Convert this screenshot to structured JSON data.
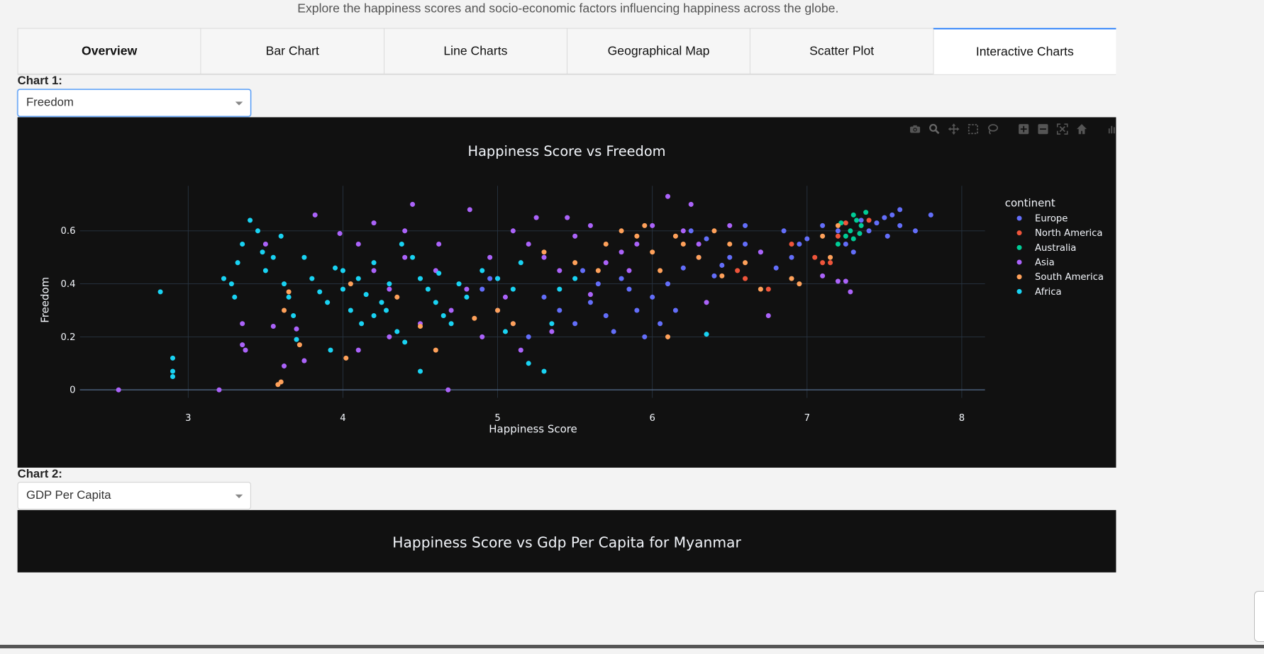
{
  "subtitle": "Explore the happiness scores and socio-economic factors influencing happiness across the globe.",
  "tabs": [
    {
      "label": "Overview"
    },
    {
      "label": "Bar Chart"
    },
    {
      "label": "Line Charts"
    },
    {
      "label": "Geographical Map"
    },
    {
      "label": "Scatter Plot"
    },
    {
      "label": "Interactive Charts"
    }
  ],
  "active_tab": "Interactive Charts",
  "chart1_control": {
    "label": "Chart 1:",
    "selected": "Freedom"
  },
  "chart2_control": {
    "label": "Chart 2:",
    "selected": "GDP Per Capita"
  },
  "modebar_icons": [
    "camera-icon",
    "zoom-icon",
    "pan-icon",
    "box-select-icon",
    "lasso-icon",
    "zoom-in-icon",
    "zoom-out-icon",
    "autoscale-icon",
    "reset-axes-icon",
    "plotly-logo-icon"
  ],
  "colors": {
    "plot_bg": "#111111",
    "Europe": "#636efa",
    "North America": "#EF553B",
    "Australia": "#00cc96",
    "Asia": "#ab63fa",
    "South America": "#FFA15A",
    "Africa": "#19d3f3"
  },
  "chart_data": [
    {
      "type": "scatter",
      "title": "Happiness Score vs Freedom",
      "xlabel": "Happiness Score",
      "ylabel": "Freedom",
      "xlim": [
        2.3,
        8.15
      ],
      "ylim": [
        -0.03,
        0.77
      ],
      "xticks": [
        3,
        4,
        5,
        6,
        7,
        8
      ],
      "yticks": [
        0,
        0.2,
        0.4,
        0.6
      ],
      "ytick_labels": [
        "0",
        "0.2",
        "0.4",
        "0.6"
      ],
      "grid": true,
      "legend": {
        "title": "continent",
        "placement": "right"
      },
      "series": [
        {
          "name": "Europe",
          "points": [
            [
              7.6,
              0.68
            ],
            [
              7.55,
              0.66
            ],
            [
              7.5,
              0.65
            ],
            [
              7.45,
              0.63
            ],
            [
              7.6,
              0.62
            ],
            [
              7.4,
              0.6
            ],
            [
              7.52,
              0.58
            ],
            [
              7.35,
              0.64
            ],
            [
              7.8,
              0.66
            ],
            [
              7.7,
              0.6
            ],
            [
              7.2,
              0.6
            ],
            [
              7.1,
              0.62
            ],
            [
              7.0,
              0.57
            ],
            [
              6.95,
              0.55
            ],
            [
              6.9,
              0.5
            ],
            [
              6.8,
              0.46
            ],
            [
              6.7,
              0.52
            ],
            [
              6.6,
              0.55
            ],
            [
              6.5,
              0.5
            ],
            [
              6.45,
              0.47
            ],
            [
              6.4,
              0.43
            ],
            [
              6.35,
              0.57
            ],
            [
              6.3,
              0.5
            ],
            [
              6.2,
              0.46
            ],
            [
              6.1,
              0.4
            ],
            [
              6.0,
              0.35
            ],
            [
              5.9,
              0.3
            ],
            [
              5.85,
              0.38
            ],
            [
              5.8,
              0.42
            ],
            [
              5.7,
              0.28
            ],
            [
              5.6,
              0.33
            ],
            [
              5.5,
              0.25
            ],
            [
              5.4,
              0.3
            ],
            [
              5.3,
              0.35
            ],
            [
              5.2,
              0.2
            ],
            [
              5.1,
              0.25
            ],
            [
              5.0,
              0.3
            ],
            [
              4.9,
              0.38
            ],
            [
              5.95,
              0.2
            ],
            [
              6.05,
              0.25
            ],
            [
              6.15,
              0.3
            ],
            [
              5.75,
              0.22
            ],
            [
              6.25,
              0.6
            ],
            [
              6.6,
              0.62
            ],
            [
              6.85,
              0.6
            ],
            [
              7.25,
              0.55
            ],
            [
              7.3,
              0.52
            ],
            [
              5.55,
              0.45
            ],
            [
              5.65,
              0.4
            ],
            [
              4.95,
              0.42
            ]
          ]
        },
        {
          "name": "North America",
          "points": [
            [
              7.4,
              0.64
            ],
            [
              7.2,
              0.58
            ],
            [
              7.1,
              0.48
            ],
            [
              7.05,
              0.5
            ],
            [
              6.9,
              0.55
            ],
            [
              6.75,
              0.38
            ],
            [
              6.6,
              0.42
            ],
            [
              6.55,
              0.45
            ],
            [
              7.25,
              0.63
            ],
            [
              7.15,
              0.48
            ]
          ]
        },
        {
          "name": "Australia",
          "points": [
            [
              7.3,
              0.66
            ],
            [
              7.32,
              0.64
            ],
            [
              7.28,
              0.6
            ],
            [
              7.25,
              0.58
            ],
            [
              7.35,
              0.62
            ],
            [
              7.3,
              0.57
            ],
            [
              7.38,
              0.67
            ],
            [
              7.22,
              0.63
            ],
            [
              7.34,
              0.59
            ],
            [
              7.2,
              0.55
            ]
          ]
        },
        {
          "name": "Asia",
          "points": [
            [
              2.55,
              0.0
            ],
            [
              3.2,
              0.0
            ],
            [
              4.68,
              0.0
            ],
            [
              3.35,
              0.17
            ],
            [
              3.37,
              0.15
            ],
            [
              3.35,
              0.25
            ],
            [
              3.55,
              0.24
            ],
            [
              3.62,
              0.09
            ],
            [
              3.82,
              0.66
            ],
            [
              3.98,
              0.59
            ],
            [
              4.2,
              0.63
            ],
            [
              4.4,
              0.6
            ],
            [
              4.45,
              0.7
            ],
            [
              4.62,
              0.55
            ],
            [
              4.82,
              0.68
            ],
            [
              4.95,
              0.5
            ],
            [
              5.0,
              0.42
            ],
            [
              5.05,
              0.35
            ],
            [
              5.1,
              0.6
            ],
            [
              5.2,
              0.55
            ],
            [
              5.25,
              0.65
            ],
            [
              5.3,
              0.5
            ],
            [
              5.4,
              0.45
            ],
            [
              5.45,
              0.65
            ],
            [
              5.5,
              0.58
            ],
            [
              5.6,
              0.62
            ],
            [
              5.7,
              0.48
            ],
            [
              5.8,
              0.52
            ],
            [
              5.9,
              0.55
            ],
            [
              6.0,
              0.62
            ],
            [
              6.1,
              0.73
            ],
            [
              6.2,
              0.6
            ],
            [
              6.25,
              0.7
            ],
            [
              6.3,
              0.55
            ],
            [
              6.35,
              0.33
            ],
            [
              6.5,
              0.62
            ],
            [
              6.7,
              0.52
            ],
            [
              6.75,
              0.28
            ],
            [
              7.1,
              0.43
            ],
            [
              7.2,
              0.41
            ],
            [
              7.28,
              0.37
            ],
            [
              7.25,
              0.41
            ],
            [
              4.1,
              0.15
            ],
            [
              4.3,
              0.2
            ],
            [
              4.5,
              0.25
            ],
            [
              4.7,
              0.3
            ],
            [
              4.9,
              0.2
            ],
            [
              5.15,
              0.15
            ],
            [
              5.35,
              0.22
            ],
            [
              4.2,
              0.45
            ],
            [
              4.4,
              0.5
            ],
            [
              4.6,
              0.45
            ],
            [
              4.8,
              0.38
            ],
            [
              3.7,
              0.23
            ],
            [
              3.75,
              0.11
            ],
            [
              4.1,
              0.55
            ],
            [
              4.3,
              0.38
            ],
            [
              3.5,
              0.55
            ],
            [
              5.6,
              0.36
            ],
            [
              5.85,
              0.45
            ]
          ]
        },
        {
          "name": "South America",
          "points": [
            [
              3.58,
              0.02
            ],
            [
              3.6,
              0.03
            ],
            [
              3.62,
              0.3
            ],
            [
              3.65,
              0.37
            ],
            [
              3.72,
              0.17
            ],
            [
              4.02,
              0.12
            ],
            [
              4.05,
              0.4
            ],
            [
              4.5,
              0.24
            ],
            [
              4.6,
              0.15
            ],
            [
              4.85,
              0.27
            ],
            [
              5.0,
              0.3
            ],
            [
              5.1,
              0.25
            ],
            [
              5.3,
              0.52
            ],
            [
              5.5,
              0.48
            ],
            [
              5.7,
              0.55
            ],
            [
              5.8,
              0.6
            ],
            [
              5.9,
              0.58
            ],
            [
              6.0,
              0.52
            ],
            [
              6.05,
              0.45
            ],
            [
              6.1,
              0.2
            ],
            [
              6.2,
              0.55
            ],
            [
              6.3,
              0.5
            ],
            [
              6.4,
              0.6
            ],
            [
              6.5,
              0.55
            ],
            [
              6.6,
              0.48
            ],
            [
              6.7,
              0.38
            ],
            [
              6.9,
              0.42
            ],
            [
              6.95,
              0.4
            ],
            [
              7.1,
              0.58
            ],
            [
              7.2,
              0.62
            ],
            [
              7.15,
              0.5
            ],
            [
              5.95,
              0.62
            ],
            [
              6.15,
              0.58
            ],
            [
              6.45,
              0.43
            ],
            [
              5.65,
              0.45
            ],
            [
              4.35,
              0.35
            ]
          ]
        },
        {
          "name": "Africa",
          "points": [
            [
              2.82,
              0.37
            ],
            [
              2.9,
              0.12
            ],
            [
              2.9,
              0.07
            ],
            [
              2.9,
              0.05
            ],
            [
              3.23,
              0.42
            ],
            [
              3.28,
              0.4
            ],
            [
              3.3,
              0.35
            ],
            [
              3.32,
              0.48
            ],
            [
              3.35,
              0.55
            ],
            [
              3.4,
              0.64
            ],
            [
              3.45,
              0.6
            ],
            [
              3.48,
              0.52
            ],
            [
              3.5,
              0.45
            ],
            [
              3.55,
              0.5
            ],
            [
              3.6,
              0.58
            ],
            [
              3.62,
              0.4
            ],
            [
              3.65,
              0.35
            ],
            [
              3.68,
              0.28
            ],
            [
              3.7,
              0.19
            ],
            [
              3.75,
              0.5
            ],
            [
              3.8,
              0.42
            ],
            [
              3.85,
              0.37
            ],
            [
              3.9,
              0.33
            ],
            [
              3.95,
              0.46
            ],
            [
              4.0,
              0.38
            ],
            [
              4.05,
              0.3
            ],
            [
              4.1,
              0.42
            ],
            [
              4.15,
              0.36
            ],
            [
              4.2,
              0.28
            ],
            [
              4.25,
              0.33
            ],
            [
              4.3,
              0.4
            ],
            [
              4.35,
              0.22
            ],
            [
              4.4,
              0.18
            ],
            [
              4.45,
              0.5
            ],
            [
              4.5,
              0.42
            ],
            [
              4.55,
              0.38
            ],
            [
              4.6,
              0.33
            ],
            [
              4.65,
              0.28
            ],
            [
              4.7,
              0.25
            ],
            [
              4.75,
              0.4
            ],
            [
              4.8,
              0.35
            ],
            [
              4.9,
              0.45
            ],
            [
              5.0,
              0.42
            ],
            [
              5.1,
              0.38
            ],
            [
              5.15,
              0.48
            ],
            [
              5.2,
              0.1
            ],
            [
              5.3,
              0.07
            ],
            [
              5.35,
              0.25
            ],
            [
              5.4,
              0.38
            ],
            [
              5.5,
              0.42
            ],
            [
              4.5,
              0.07
            ],
            [
              4.0,
              0.45
            ],
            [
              4.2,
              0.48
            ],
            [
              4.38,
              0.55
            ],
            [
              4.28,
              0.3
            ],
            [
              3.92,
              0.15
            ],
            [
              6.35,
              0.21
            ],
            [
              4.12,
              0.25
            ],
            [
              4.62,
              0.44
            ],
            [
              5.05,
              0.22
            ]
          ]
        }
      ]
    },
    {
      "type": "scatter",
      "title": "Happiness Score vs Gdp Per Capita for Myanmar"
    }
  ]
}
